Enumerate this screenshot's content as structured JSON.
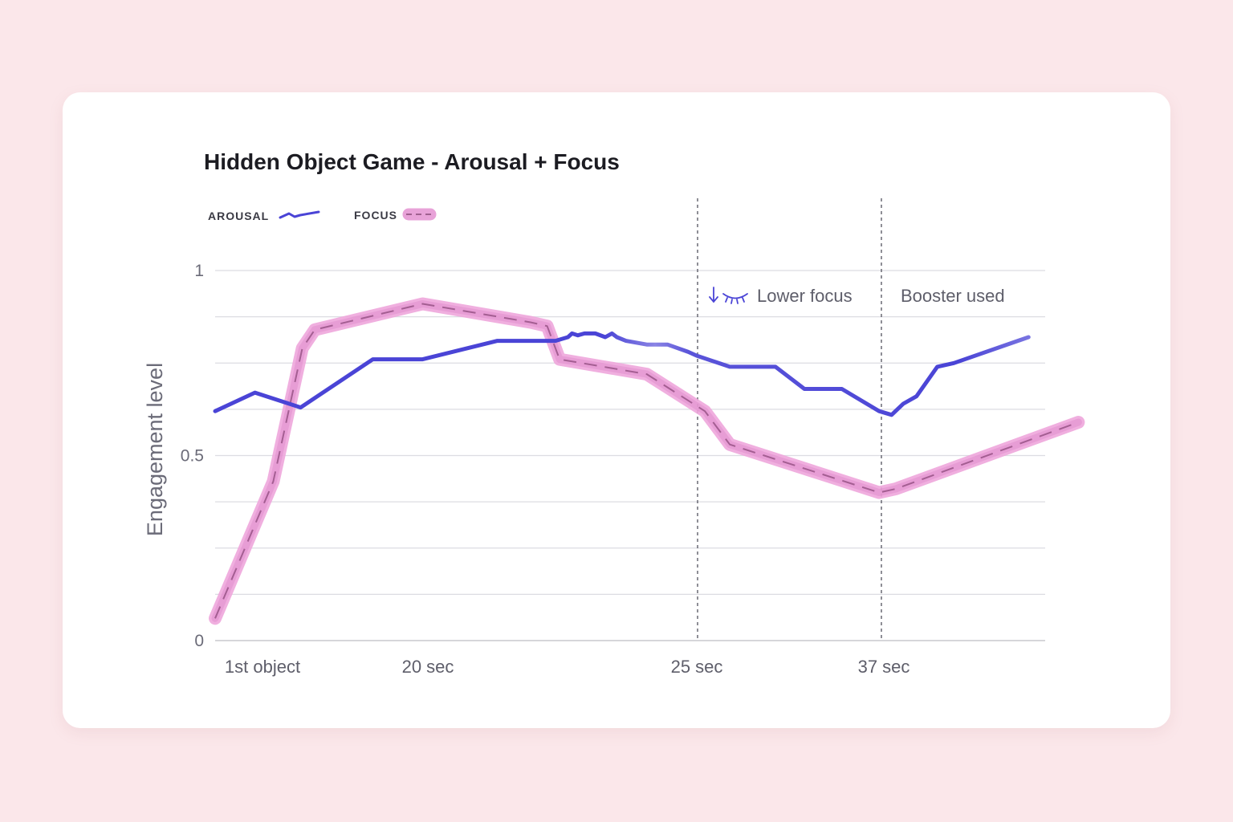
{
  "chart_data": {
    "type": "line",
    "title": "Hidden Object Game - Arousal + Focus",
    "ylabel": "Engagement level",
    "ylim": [
      0,
      1
    ],
    "yticks": [
      0,
      0.5,
      1
    ],
    "x_ticks": [
      "1st object",
      "20 sec",
      "25 sec",
      "37 sec"
    ],
    "legend": {
      "placement": "top-left"
    },
    "grid": true,
    "series": [
      {
        "name": "AROUSAL",
        "color": "#4a44d6",
        "style": "solid",
        "x": [
          0.0,
          0.048,
          0.103,
          0.19,
          0.25,
          0.34,
          0.41,
          0.425,
          0.43,
          0.437,
          0.445,
          0.458,
          0.47,
          0.478,
          0.484,
          0.495,
          0.52,
          0.545,
          0.57,
          0.58,
          0.62,
          0.675,
          0.71,
          0.755,
          0.8,
          0.815,
          0.829,
          0.845,
          0.87,
          0.89,
          0.98
        ],
        "values": [
          0.62,
          0.67,
          0.63,
          0.76,
          0.76,
          0.81,
          0.81,
          0.82,
          0.83,
          0.825,
          0.83,
          0.83,
          0.82,
          0.83,
          0.82,
          0.81,
          0.8,
          0.8,
          0.78,
          0.77,
          0.74,
          0.74,
          0.68,
          0.68,
          0.62,
          0.61,
          0.64,
          0.66,
          0.74,
          0.75,
          0.82
        ]
      },
      {
        "name": "FOCUS",
        "color": "#e06fc8",
        "style": "dashed",
        "x": [
          0.0,
          0.07,
          0.105,
          0.12,
          0.25,
          0.38,
          0.4,
          0.415,
          0.52,
          0.59,
          0.62,
          0.8,
          0.82,
          1.04
        ],
        "values": [
          0.06,
          0.43,
          0.79,
          0.84,
          0.91,
          0.86,
          0.85,
          0.76,
          0.72,
          0.62,
          0.53,
          0.4,
          0.41,
          0.59
        ]
      }
    ],
    "annotations": [
      {
        "x_tick": "25 sec",
        "label": "Lower focus",
        "icon": "down-arrow-closed-eye-icon"
      },
      {
        "x_tick": "37 sec",
        "label": "Booster used"
      }
    ]
  }
}
